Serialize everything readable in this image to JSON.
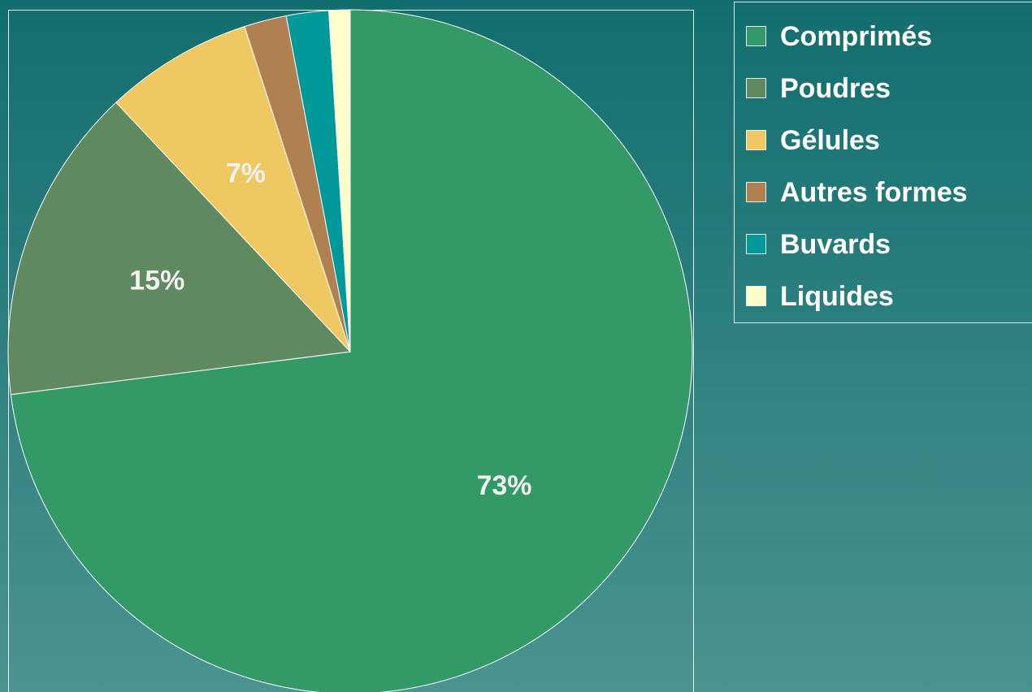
{
  "chart_data": {
    "type": "pie",
    "categories": [
      "Comprimés",
      "Poudres",
      "Gélules",
      "Autres formes",
      "Buvards",
      "Liquides"
    ],
    "values": [
      73,
      15,
      7,
      2,
      2,
      1
    ],
    "value_labels": [
      "73%",
      "15%",
      "7%",
      null,
      null,
      null
    ],
    "colors": [
      "#339966",
      "#5f8a5f",
      "#f0c862",
      "#b08050",
      "#009999",
      "#ffffcc"
    ],
    "legend": "right"
  }
}
